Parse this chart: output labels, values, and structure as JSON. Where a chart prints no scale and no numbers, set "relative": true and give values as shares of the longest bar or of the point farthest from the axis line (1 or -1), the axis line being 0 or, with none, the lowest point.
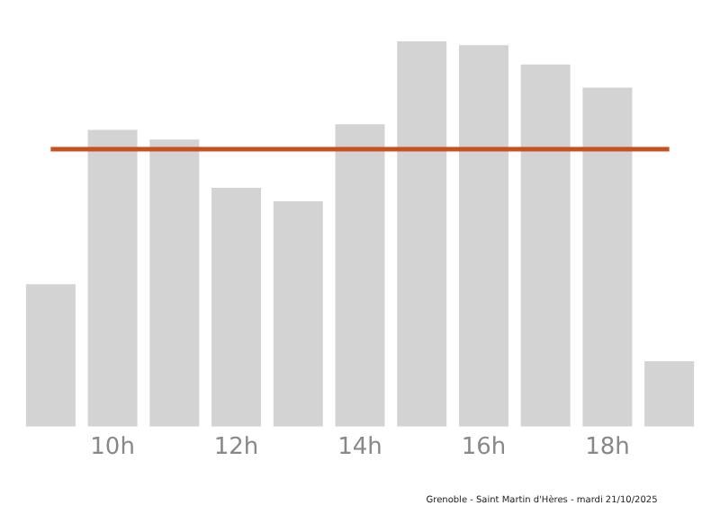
{
  "chart_data": {
    "type": "bar",
    "relative": true,
    "categories": [
      null,
      "10h",
      null,
      "12h",
      null,
      "14h",
      null,
      "16h",
      null,
      "18h",
      null
    ],
    "values": [
      0.37,
      0.77,
      0.745,
      0.62,
      0.585,
      0.785,
      1,
      0.99,
      0.94,
      0.88,
      0.17
    ],
    "color": "#d3d3d3",
    "ref_lines": [
      {
        "axis": "y",
        "value": 0.72,
        "color": "#c8501e"
      }
    ],
    "annotations": [
      "Grenoble - Saint Martin d'Hères - mardi 21/10/2025"
    ],
    "grid": false,
    "legend": false
  }
}
